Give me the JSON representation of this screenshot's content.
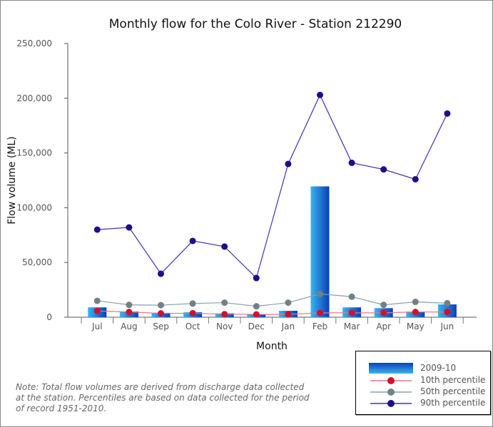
{
  "chart_data": {
    "type": "bar",
    "title": "Monthly flow for the Colo River - Station 212290",
    "xlabel": "Month",
    "ylabel": "Flow volume (ML)",
    "ylim": [
      0,
      250000
    ],
    "yticks": [
      0,
      50000,
      100000,
      150000,
      200000,
      250000
    ],
    "ytick_labels": [
      "0",
      "50,000",
      "100,000",
      "150,000",
      "200,000",
      "250,000"
    ],
    "categories": [
      "Jul",
      "Aug",
      "Sep",
      "Oct",
      "Nov",
      "Dec",
      "Jan",
      "Feb",
      "Mar",
      "Apr",
      "May",
      "Jun"
    ],
    "series": [
      {
        "name": "2009-10",
        "kind": "bar",
        "color": "#1565d8",
        "values": [
          9000,
          5200,
          4000,
          4500,
          3500,
          2600,
          5900,
          119500,
          9000,
          8300,
          5200,
          11700
        ]
      },
      {
        "name": "10th percentile",
        "kind": "line",
        "color": "#d40f2a",
        "line_color": "#e07a88",
        "values": [
          5700,
          4800,
          3500,
          3700,
          2800,
          2600,
          2600,
          4000,
          4000,
          4000,
          4800,
          4800
        ]
      },
      {
        "name": "50th percentile",
        "kind": "line",
        "color": "#6e8287",
        "line_color": "#8aa0a8",
        "values": [
          15000,
          11300,
          11000,
          12500,
          13300,
          10000,
          13300,
          21300,
          18700,
          11300,
          14000,
          12800
        ]
      },
      {
        "name": "90th percentile",
        "kind": "line",
        "color": "#220a8c",
        "line_color": "#4a2fb0",
        "values": [
          80000,
          82000,
          39700,
          69700,
          64500,
          35800,
          140000,
          203000,
          141000,
          135000,
          126000,
          186000
        ]
      }
    ],
    "legend": "bottom-right",
    "grid": false
  },
  "note": "Note: Total flow volumes are derived from discharge data collected at the station. Percentiles are based on data collected for the period of record 1951-2010."
}
